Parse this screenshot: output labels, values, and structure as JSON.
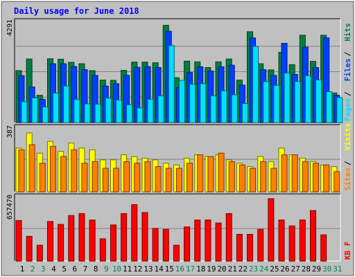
{
  "chart_data": {
    "type": "bar",
    "title": "Daily usage for June 2018",
    "categories": [
      "1",
      "2",
      "3",
      "4",
      "5",
      "6",
      "7",
      "8",
      "9",
      "10",
      "11",
      "12",
      "13",
      "14",
      "15",
      "16",
      "17",
      "18",
      "19",
      "20",
      "21",
      "22",
      "23",
      "24",
      "25",
      "26",
      "27",
      "28",
      "29",
      "30",
      "31"
    ],
    "weekend_days": [
      "2",
      "3",
      "9",
      "10",
      "16",
      "17",
      "23",
      "24",
      "30",
      "31"
    ],
    "panels": [
      {
        "id": "hits",
        "max_label": "4291",
        "ylim": [
          0,
          4291
        ],
        "legend": [
          "Pages",
          "Files",
          "Hits"
        ],
        "series": [
          {
            "name": "Hits",
            "values": [
              2190,
              2680,
              1150,
              2690,
              2670,
              2540,
              2480,
              2190,
              1790,
              1780,
              2200,
              2550,
              2550,
              2520,
              4100,
              1890,
              2590,
              2560,
              2320,
              2560,
              2680,
              1790,
              3830,
              2480,
              2220,
              2960,
              2440,
              3680,
              2580,
              3680,
              1250
            ]
          },
          {
            "name": "Files",
            "values": [
              1980,
              1500,
              980,
              2480,
              2480,
              2360,
              2230,
              1990,
              1540,
              1640,
              1990,
              2330,
              2360,
              2320,
              3850,
              1470,
              2110,
              2350,
              2170,
              2350,
              2420,
              1580,
              3570,
              2230,
              1990,
              3340,
              2030,
              3180,
              2320,
              3570,
              1150
            ]
          },
          {
            "name": "Pages",
            "values": [
              880,
              1040,
              660,
              1240,
              1540,
              970,
              790,
              780,
              1030,
              950,
              750,
              620,
              980,
              1130,
              3240,
              1780,
              1620,
              1640,
              1130,
              1340,
              1170,
              800,
              3210,
              1730,
              1570,
              2090,
              1730,
              1980,
              1800,
              1300,
              1050
            ]
          }
        ]
      },
      {
        "id": "visits",
        "max_label": "387",
        "ylim": [
          0,
          387
        ],
        "legend": [
          "Sites",
          "Visits"
        ],
        "series": [
          {
            "name": "Visits",
            "values": [
              260,
              350,
              230,
              300,
              240,
              290,
              260,
              250,
              190,
              190,
              220,
              210,
              200,
              190,
              170,
              160,
              200,
              220,
              210,
              220,
              190,
              170,
              150,
              210,
              180,
              260,
              220,
              200,
              180,
              160,
              150
            ]
          },
          {
            "name": "Sites",
            "values": [
              250,
              280,
              170,
              270,
              210,
              250,
              170,
              180,
              140,
              140,
              180,
              170,
              180,
              150,
              140,
              140,
              170,
              220,
              210,
              230,
              180,
              160,
              140,
              180,
              140,
              220,
              220,
              180,
              170,
              160,
              120
            ]
          }
        ]
      },
      {
        "id": "kbytes",
        "max_label": "657470",
        "ylim": [
          0,
          657470
        ],
        "legend": [
          "KB F"
        ],
        "series": [
          {
            "name": "KB F",
            "values": [
              410000,
              250000,
              160000,
              400000,
              370000,
              460000,
              480000,
              415000,
              225000,
              365000,
              480000,
              570000,
              490000,
              330000,
              320000,
              160000,
              345000,
              415000,
              415000,
              385000,
              480000,
              270000,
              270000,
              320000,
              630000,
              415000,
              355000,
              415000,
              510000,
              265000,
              0
            ]
          }
        ]
      }
    ],
    "colors": {
      "Hits": "#008040",
      "Files": "#0040ff",
      "Pages": "#00e0ff",
      "Visits": "#ffff00",
      "Sites": "#ff8000",
      "KB F": "#ff0000",
      "title": "#0000ff",
      "weekday": "#000000",
      "weekend": "#00805c",
      "background": "#c0c0c0"
    },
    "grid": true,
    "legend_placement": "right"
  }
}
